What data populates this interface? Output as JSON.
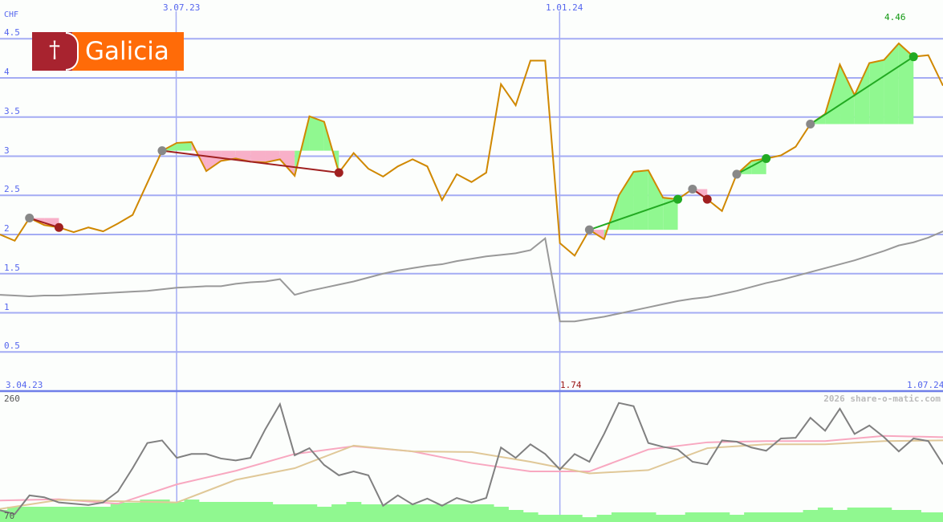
{
  "chart_data": [
    {
      "type": "line",
      "currency_label": "CHF",
      "ylim": [
        0,
        4.5
      ],
      "y_ticks": [
        "4.5",
        "4",
        "3.5",
        "3",
        "2.5",
        "2",
        "1.5",
        "1",
        "0.5"
      ],
      "y_tick_values": [
        4.5,
        4,
        3.5,
        3,
        2.5,
        2,
        1.5,
        1,
        0.5
      ],
      "x_ticks_top": [
        {
          "label": "3.07.23",
          "index": 12
        },
        {
          "label": "1.01.24",
          "index": 38
        }
      ],
      "x_label_start": "3.04.23",
      "x_label_end": "1.07.24",
      "max_label": "4.46",
      "min_label": "1.74",
      "grid": true,
      "series": [
        {
          "role": "price",
          "color": "#d08800",
          "values": [
            2.0,
            1.92,
            2.21,
            2.12,
            2.09,
            2.03,
            2.09,
            2.04,
            2.14,
            2.25,
            2.66,
            3.07,
            3.17,
            3.18,
            2.81,
            2.94,
            2.97,
            2.93,
            2.92,
            2.96,
            2.75,
            3.51,
            3.44,
            2.79,
            3.04,
            2.84,
            2.74,
            2.87,
            2.96,
            2.87,
            2.44,
            2.77,
            2.67,
            2.79,
            3.92,
            3.65,
            4.22,
            4.22,
            1.89,
            1.73,
            2.06,
            1.94,
            2.5,
            2.8,
            2.82,
            2.47,
            2.45,
            2.58,
            2.45,
            2.3,
            2.77,
            2.94,
            2.97,
            3.01,
            3.12,
            3.41,
            3.54,
            4.17,
            3.78,
            4.19,
            4.23,
            4.44,
            4.27,
            4.29,
            3.9
          ]
        },
        {
          "role": "benchmark",
          "color": "#999999",
          "values": [
            1.23,
            1.22,
            1.21,
            1.22,
            1.22,
            1.23,
            1.24,
            1.25,
            1.26,
            1.27,
            1.28,
            1.3,
            1.32,
            1.33,
            1.34,
            1.34,
            1.37,
            1.39,
            1.4,
            1.43,
            1.23,
            1.28,
            1.32,
            1.36,
            1.4,
            1.45,
            1.5,
            1.54,
            1.57,
            1.6,
            1.62,
            1.66,
            1.69,
            1.72,
            1.74,
            1.76,
            1.8,
            1.95,
            0.89,
            0.89,
            0.92,
            0.95,
            0.99,
            1.03,
            1.07,
            1.11,
            1.15,
            1.18,
            1.2,
            1.24,
            1.28,
            1.33,
            1.38,
            1.42,
            1.47,
            1.52,
            1.57,
            1.62,
            1.67,
            1.73,
            1.79,
            1.86,
            1.9,
            1.96,
            2.04
          ]
        }
      ],
      "trades": [
        {
          "entry": 2,
          "exit": 4,
          "result": "loss"
        },
        {
          "entry": 11,
          "exit": 23,
          "result": "loss"
        },
        {
          "entry": 40,
          "exit": 46,
          "result": "gain"
        },
        {
          "entry": 47,
          "exit": 48,
          "result": "loss"
        },
        {
          "entry": 50,
          "exit": 52,
          "result": "gain"
        },
        {
          "entry": 55,
          "exit": 62,
          "result": "gain"
        }
      ],
      "colors": {
        "gain": "#22aa22",
        "loss": "#a02020",
        "gain_fill": "#90f890",
        "loss_fill": "#f8b0c8",
        "entry": "#888888"
      }
    },
    {
      "type": "line",
      "ylim": [
        70,
        260
      ],
      "y_top_label": "260",
      "y_bottom_label": "70",
      "watermark": "2026 share-o-matic.com",
      "series": [
        {
          "role": "indicator",
          "color": "#808080",
          "values": [
            82,
            76,
            105,
            102,
            94,
            92,
            90,
            94,
            111,
            147,
            186,
            190,
            163,
            169,
            169,
            162,
            159,
            163,
            207,
            246,
            167,
            178,
            152,
            136,
            142,
            136,
            89,
            105,
            91,
            100,
            89,
            101,
            94,
            101,
            179,
            163,
            184,
            169,
            145,
            169,
            157,
            200,
            248,
            243,
            186,
            180,
            176,
            157,
            153,
            190,
            188,
            179,
            174,
            193,
            194,
            225,
            205,
            239,
            200,
            213,
            195,
            173,
            193,
            189,
            153
          ]
        },
        {
          "role": "average-fast",
          "color": "#f8a8c0",
          "step": 4,
          "values": [
            97,
            99,
            92,
            122,
            143,
            169,
            181,
            173,
            155,
            142,
            142,
            176,
            187,
            189,
            189,
            197,
            195
          ]
        },
        {
          "role": "average-slow",
          "color": "#e0c898",
          "step": 4,
          "values": [
            84,
            98,
            96,
            94,
            129,
            147,
            182,
            173,
            172,
            157,
            139,
            144,
            178,
            184,
            184,
            189,
            190
          ]
        },
        {
          "role": "volume",
          "color": "#90f890",
          "relative": true,
          "values": [
            10,
            14,
            14,
            14,
            14,
            14,
            14,
            14,
            19,
            19,
            23,
            23,
            20,
            23,
            20,
            20,
            20,
            20,
            20,
            17,
            17,
            17,
            14,
            17,
            20,
            17,
            17,
            17,
            17,
            17,
            17,
            17,
            17,
            17,
            14,
            10,
            7,
            4,
            4,
            4,
            1,
            4,
            7,
            7,
            7,
            4,
            4,
            7,
            7,
            7,
            4,
            7,
            7,
            7,
            7,
            10,
            13,
            10,
            13,
            13,
            13,
            10,
            10,
            7,
            7
          ]
        }
      ]
    }
  ],
  "logo": {
    "text": "Galicia"
  }
}
